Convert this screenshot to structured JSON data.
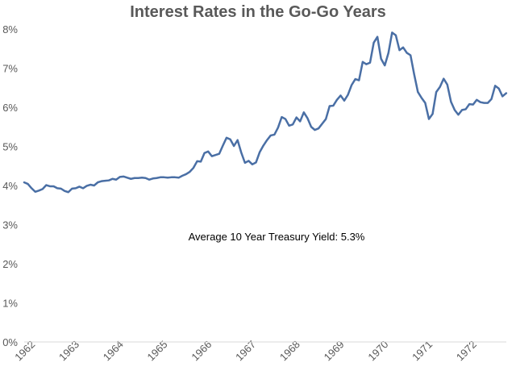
{
  "chart_data": {
    "type": "line",
    "title": "Interest Rates in the Go-Go Years",
    "xlabel": "",
    "ylabel": "",
    "annotation": "Average 10 Year Treasury Yield: 5.3%",
    "xlim": [
      1962.0,
      1972.92
    ],
    "ylim": [
      0,
      8
    ],
    "x_tick_values": [
      1962,
      1963,
      1964,
      1965,
      1966,
      1967,
      1968,
      1969,
      1970,
      1971,
      1972
    ],
    "x_tick_labels": [
      "1962",
      "1963",
      "1964",
      "1965",
      "1966",
      "1967",
      "1968",
      "1969",
      "1970",
      "1971",
      "1972"
    ],
    "y_tick_values": [
      0,
      1,
      2,
      3,
      4,
      5,
      6,
      7,
      8
    ],
    "y_tick_labels": [
      "0%",
      "1%",
      "2%",
      "3%",
      "4%",
      "5%",
      "6%",
      "7%",
      "8%"
    ],
    "grid": false,
    "line_color": "#4a6fa5",
    "series": [
      {
        "name": "10 Year Treasury Yield",
        "x": [
          1962.0,
          1962.083,
          1962.167,
          1962.25,
          1962.333,
          1962.417,
          1962.5,
          1962.583,
          1962.667,
          1962.75,
          1962.833,
          1962.917,
          1963.0,
          1963.083,
          1963.167,
          1963.25,
          1963.333,
          1963.417,
          1963.5,
          1963.583,
          1963.667,
          1963.75,
          1963.833,
          1963.917,
          1964.0,
          1964.083,
          1964.167,
          1964.25,
          1964.333,
          1964.417,
          1964.5,
          1964.583,
          1964.667,
          1964.75,
          1964.833,
          1964.917,
          1965.0,
          1965.083,
          1965.167,
          1965.25,
          1965.333,
          1965.417,
          1965.5,
          1965.583,
          1965.667,
          1965.75,
          1965.833,
          1965.917,
          1966.0,
          1966.083,
          1966.167,
          1966.25,
          1966.333,
          1966.417,
          1966.5,
          1966.583,
          1966.667,
          1966.75,
          1966.833,
          1966.917,
          1967.0,
          1967.083,
          1967.167,
          1967.25,
          1967.333,
          1967.417,
          1967.5,
          1967.583,
          1967.667,
          1967.75,
          1967.833,
          1967.917,
          1968.0,
          1968.083,
          1968.167,
          1968.25,
          1968.333,
          1968.417,
          1968.5,
          1968.583,
          1968.667,
          1968.75,
          1968.833,
          1968.917,
          1969.0,
          1969.083,
          1969.167,
          1969.25,
          1969.333,
          1969.417,
          1969.5,
          1969.583,
          1969.667,
          1969.75,
          1969.833,
          1969.917,
          1970.0,
          1970.083,
          1970.167,
          1970.25,
          1970.333,
          1970.417,
          1970.5,
          1970.583,
          1970.667,
          1970.75,
          1970.833,
          1970.917,
          1971.0,
          1971.083,
          1971.167,
          1971.25,
          1971.333,
          1971.417,
          1971.5,
          1971.583,
          1971.667,
          1971.75,
          1971.833,
          1971.917,
          1972.0,
          1972.083,
          1972.167,
          1972.25,
          1972.333,
          1972.417,
          1972.5,
          1972.583,
          1972.667,
          1972.75,
          1972.833,
          1972.917
        ],
        "values": [
          4.08,
          4.04,
          3.93,
          3.84,
          3.87,
          3.91,
          4.01,
          3.98,
          3.98,
          3.93,
          3.92,
          3.86,
          3.83,
          3.92,
          3.93,
          3.97,
          3.93,
          3.99,
          4.02,
          4.0,
          4.08,
          4.11,
          4.12,
          4.13,
          4.17,
          4.15,
          4.22,
          4.23,
          4.2,
          4.17,
          4.19,
          4.19,
          4.2,
          4.19,
          4.15,
          4.18,
          4.19,
          4.21,
          4.21,
          4.2,
          4.21,
          4.21,
          4.2,
          4.25,
          4.29,
          4.35,
          4.45,
          4.62,
          4.61,
          4.83,
          4.87,
          4.75,
          4.78,
          4.81,
          5.02,
          5.22,
          5.18,
          5.01,
          5.16,
          4.84,
          4.58,
          4.63,
          4.54,
          4.59,
          4.85,
          5.02,
          5.16,
          5.28,
          5.3,
          5.48,
          5.75,
          5.7,
          5.53,
          5.56,
          5.74,
          5.64,
          5.87,
          5.72,
          5.5,
          5.42,
          5.46,
          5.58,
          5.7,
          6.03,
          6.04,
          6.19,
          6.3,
          6.17,
          6.32,
          6.57,
          6.72,
          6.69,
          7.16,
          7.1,
          7.14,
          7.65,
          7.8,
          7.24,
          7.07,
          7.39,
          7.91,
          7.84,
          7.46,
          7.53,
          7.39,
          7.33,
          6.84,
          6.39,
          6.24,
          6.11,
          5.7,
          5.83,
          6.39,
          6.52,
          6.73,
          6.58,
          6.14,
          5.93,
          5.81,
          5.93,
          5.95,
          6.08,
          6.07,
          6.19,
          6.13,
          6.11,
          6.11,
          6.21,
          6.55,
          6.48,
          6.28,
          6.36
        ]
      }
    ]
  }
}
